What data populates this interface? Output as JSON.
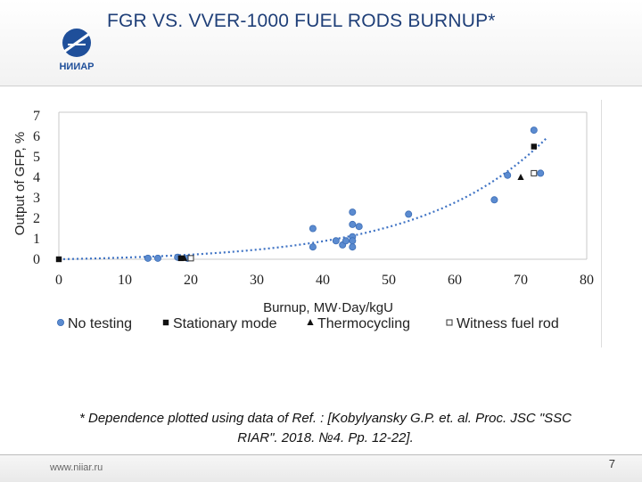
{
  "title": "FGR VS. VVER-1000 FUEL RODS BURNUP*",
  "logo_text": "НИИАР",
  "footnote_line1": "* Dependence plotted using data of Ref. : [Kobylyansky G.P. et. al. Proc. JSC \"SSC",
  "footnote_line2": "RIAR\". 2018. №4. Pp. 12-22].",
  "website": "www.niiar.ru",
  "page_number": "7",
  "colors": {
    "title": "#1f3f78",
    "circle": "#5b8bd0",
    "circle_stroke": "#3c6db5",
    "trend": "#3f73c4"
  },
  "chart_data": {
    "type": "scatter",
    "title": "",
    "xlabel": "Burnup, MW·Day/kgU",
    "ylabel": "Output of GFP, %",
    "xlim": [
      0,
      80
    ],
    "ylim": [
      0,
      7
    ],
    "xticks": [
      "0",
      "10",
      "20",
      "30",
      "40",
      "50",
      "60",
      "70",
      "80"
    ],
    "yticks": [
      "0",
      "1",
      "2",
      "3",
      "4",
      "5",
      "6",
      "7"
    ],
    "grid": false,
    "legend_placement": "bottom",
    "trendline": "exponential, dotted",
    "series": [
      {
        "name": "No testing",
        "marker": "circle",
        "points": [
          [
            13.5,
            0.05
          ],
          [
            15,
            0.05
          ],
          [
            18,
            0.1
          ],
          [
            19.5,
            0.05
          ],
          [
            38.5,
            1.5
          ],
          [
            38.5,
            0.6
          ],
          [
            42,
            0.9
          ],
          [
            43,
            0.7
          ],
          [
            43.5,
            0.9
          ],
          [
            44.5,
            1.1
          ],
          [
            44.5,
            0.9
          ],
          [
            44.5,
            0.6
          ],
          [
            44.5,
            1.7
          ],
          [
            44.5,
            2.3
          ],
          [
            45.5,
            1.6
          ],
          [
            53,
            2.2
          ],
          [
            66,
            2.9
          ],
          [
            68,
            4.1
          ],
          [
            72,
            6.3
          ],
          [
            73,
            4.2
          ]
        ]
      },
      {
        "name": "Stationary mode",
        "marker": "square",
        "points": [
          [
            0,
            0
          ],
          [
            18.5,
            0.05
          ],
          [
            72,
            5.5
          ]
        ]
      },
      {
        "name": "Thermocycling",
        "marker": "triangle",
        "points": [
          [
            19,
            0.05
          ],
          [
            70,
            4
          ]
        ]
      },
      {
        "name": "Witness fuel rod",
        "marker": "open-square",
        "points": [
          [
            20,
            0.05
          ],
          [
            72,
            4.2
          ]
        ]
      }
    ]
  }
}
